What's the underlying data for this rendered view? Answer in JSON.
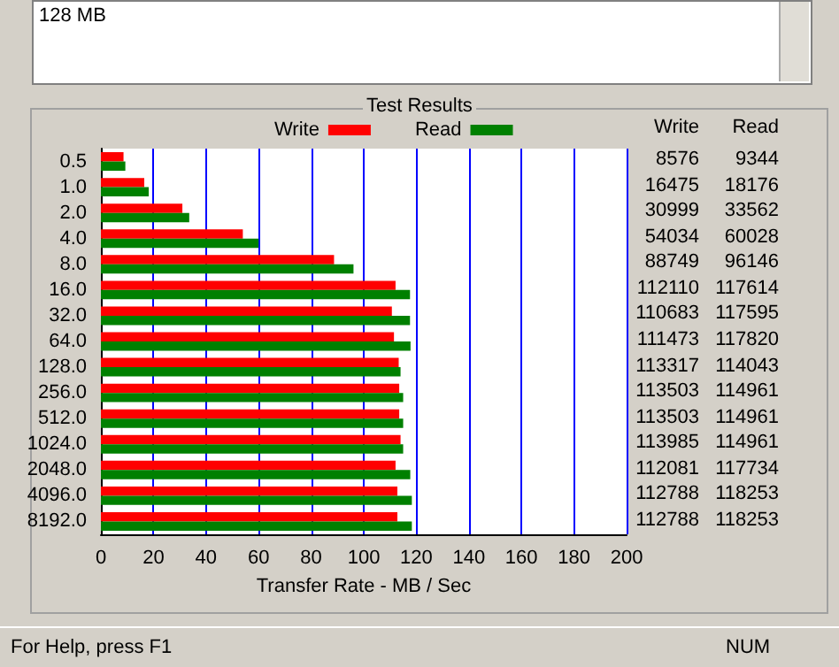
{
  "chart_data": {
    "type": "bar",
    "orientation": "horizontal",
    "title": "Test Results",
    "xlabel": "Transfer Rate - MB / Sec",
    "categories": [
      "0.5",
      "1.0",
      "2.0",
      "4.0",
      "8.0",
      "16.0",
      "32.0",
      "64.0",
      "128.0",
      "256.0",
      "512.0",
      "1024.0",
      "2048.0",
      "4096.0",
      "8192.0"
    ],
    "series": [
      {
        "name": "Write",
        "color": "#ff0000",
        "values": [
          8.6,
          16.5,
          31.0,
          54.0,
          88.7,
          112.1,
          110.7,
          111.5,
          113.3,
          113.5,
          113.5,
          114.0,
          112.1,
          112.8,
          112.8
        ]
      },
      {
        "name": "Read",
        "color": "#008000",
        "values": [
          9.3,
          18.2,
          33.6,
          60.0,
          96.1,
          117.6,
          117.6,
          117.8,
          114.0,
          115.0,
          115.0,
          115.0,
          117.7,
          118.3,
          118.3
        ]
      }
    ],
    "xlim": [
      0,
      200
    ],
    "xticks": [
      0,
      20,
      40,
      60,
      80,
      100,
      120,
      140,
      160,
      180,
      200
    ],
    "grid": "x",
    "legend": "top",
    "annotations": [
      "128 MB",
      "For Help, press F1",
      "NUM",
      "Write",
      "Read",
      "8576",
      "9344",
      "16475",
      "18176",
      "30999",
      "33562",
      "54034",
      "60028",
      "88749",
      "96146",
      "112110",
      "117614",
      "110683",
      "117595",
      "111473",
      "117820",
      "113317",
      "114043",
      "113503",
      "114961",
      "113503",
      "114961",
      "113985",
      "114961",
      "112081",
      "117734",
      "112788",
      "118253",
      "112788",
      "118253"
    ]
  }
}
